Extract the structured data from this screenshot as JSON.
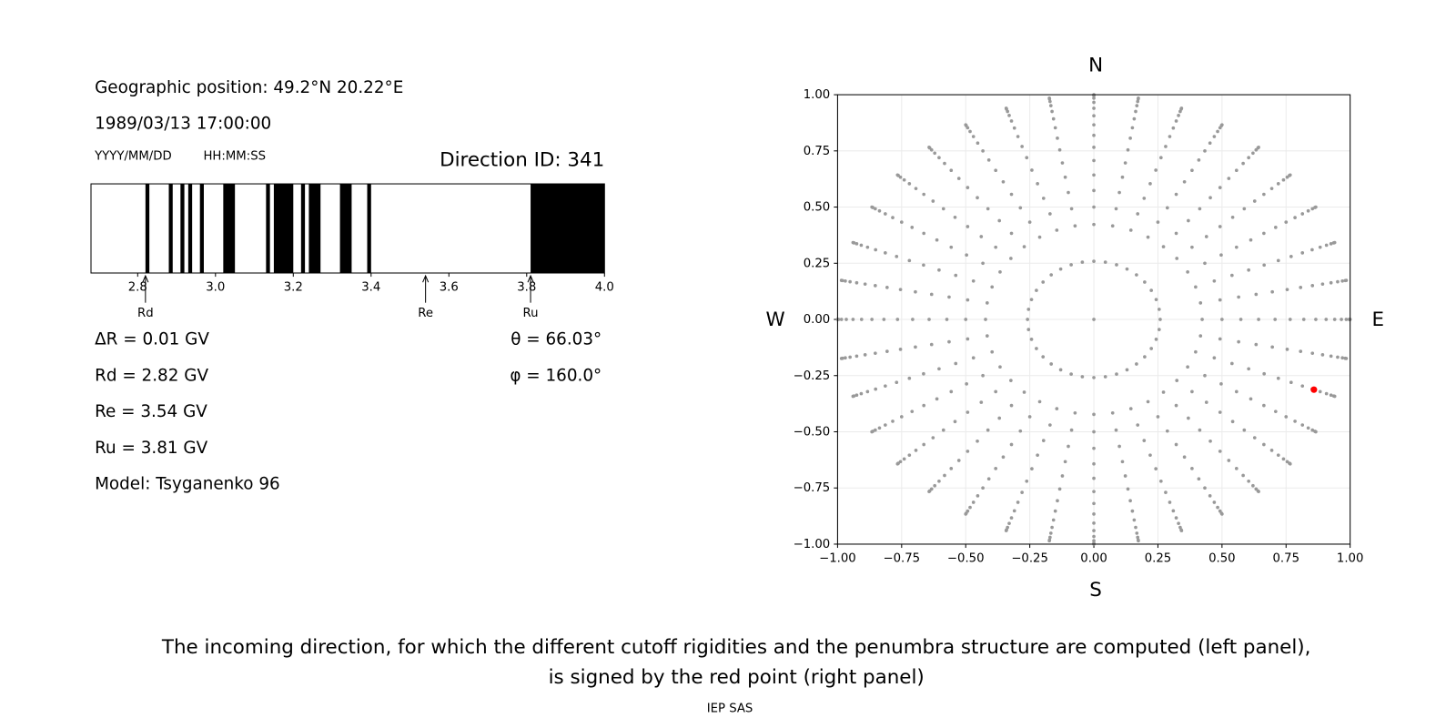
{
  "header": {
    "position": "Geographic position: 49.2°N 20.22°E",
    "datetime": "1989/03/13 17:00:00",
    "date_format": "YYYY/MM/DD",
    "time_format": "HH:MM:SS",
    "direction": "Direction ID: 341"
  },
  "chart_data": [
    {
      "type": "penumbra",
      "xlim": [
        2.68,
        4.0
      ],
      "xticks": [
        2.8,
        {
          "value": 3,
          "label": "3.0"
        },
        3.2,
        3.4,
        3.6,
        3.8,
        {
          "value": 4,
          "label": "4.0"
        }
      ],
      "color": "#000000",
      "bands": [
        [
          2.82,
          2.83
        ],
        [
          2.88,
          2.89
        ],
        [
          2.91,
          2.92
        ],
        [
          2.93,
          2.94
        ],
        [
          2.96,
          2.97
        ],
        [
          3.02,
          3.05
        ],
        [
          3.13,
          3.14
        ],
        [
          3.15,
          3.2
        ],
        [
          3.22,
          3.23
        ],
        [
          3.24,
          3.27
        ],
        [
          3.32,
          3.35
        ],
        [
          3.39,
          3.4
        ],
        [
          3.81,
          4.0
        ]
      ],
      "resolution": {
        "value": 0.01,
        "label": "ΔR = 0.01 GV"
      },
      "cutoffs": [
        {
          "name": "Rd",
          "value": 2.82,
          "label": "Rd = 2.82 GV"
        },
        {
          "name": "Re",
          "value": 3.54,
          "label": "Re = 3.54 GV"
        },
        {
          "name": "Ru",
          "value": 3.81,
          "label": "Ru = 3.81 GV"
        }
      ],
      "model": "Model: Tsyganenko 96"
    },
    {
      "type": "scatter",
      "xlim": [
        -1,
        1
      ],
      "ylim": [
        -1,
        1
      ],
      "xticks": [
        {
          "value": -1,
          "label": "−1.00"
        },
        {
          "value": -0.75,
          "label": "−0.75"
        },
        {
          "value": -0.5,
          "label": "−0.50"
        },
        {
          "value": -0.25,
          "label": "−0.25"
        },
        {
          "value": 0,
          "label": "0.00"
        },
        {
          "value": 0.25,
          "label": "0.25"
        },
        {
          "value": 0.5,
          "label": "0.50"
        },
        {
          "value": 0.75,
          "label": "0.75"
        },
        {
          "value": 1,
          "label": "1.00"
        }
      ],
      "yticks": [
        {
          "value": -1,
          "label": "−1.00"
        },
        {
          "value": -0.75,
          "label": "−0.75"
        },
        {
          "value": -0.5,
          "label": "−0.50"
        },
        {
          "value": -0.25,
          "label": "−0.25"
        },
        {
          "value": 0,
          "label": "0.00"
        },
        {
          "value": 0.25,
          "label": "0.25"
        },
        {
          "value": 0.5,
          "label": "0.50"
        },
        {
          "value": 0.75,
          "label": "0.75"
        },
        {
          "value": 1,
          "label": "1.00"
        }
      ],
      "grid": true,
      "compass": [
        "N",
        "S",
        "W",
        "E"
      ],
      "directions": {
        "color": "#999999",
        "zenith_deg": [
          15,
          25,
          30,
          35,
          40,
          45,
          50,
          55,
          60,
          65,
          70,
          75,
          80,
          85,
          90
        ],
        "azimuth_deg": [
          0,
          10,
          20,
          30,
          40,
          50,
          60,
          70,
          80,
          90,
          100,
          110,
          120,
          130,
          140,
          150,
          160,
          170,
          180,
          190,
          200,
          210,
          220,
          230,
          240,
          250,
          260,
          270,
          280,
          290,
          300,
          310,
          320,
          330,
          340,
          350
        ]
      },
      "selected": {
        "color": "#ff0000",
        "theta": {
          "value": 66.03,
          "label": "θ = 66.03°"
        },
        "phi": {
          "value": 160,
          "label": "φ = 160.0°"
        }
      }
    }
  ],
  "caption": [
    "The incoming direction, for which the different cutoff rigidities and the penumbra structure are computed (left panel),",
    "is signed by the red point (right panel)"
  ],
  "footer": "IEP SAS"
}
